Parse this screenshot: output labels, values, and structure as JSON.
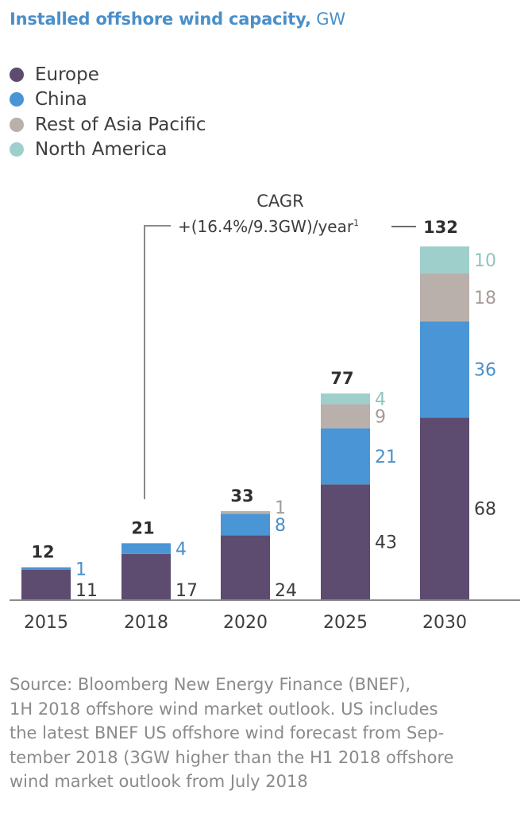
{
  "title": {
    "bold": "Installed offshore wind capacity,",
    "unit": "GW"
  },
  "legend": [
    {
      "label": "Europe",
      "color": "#5e4b70"
    },
    {
      "label": "China",
      "color": "#4a95d6"
    },
    {
      "label": "Rest of Asia Pacific",
      "color": "#b9b0ab"
    },
    {
      "label": "North America",
      "color": "#9ecfcb"
    }
  ],
  "annotation": {
    "line1": "CAGR",
    "line2": "+(16.4%/9.3GW)/year",
    "superscript": "1"
  },
  "source_lines": [
    "Source: Bloomberg New Energy Finance (BNEF),",
    "1H 2018 offshore wind market outlook. US includes",
    "the latest BNEF US offshore wind forecast from Sep-",
    "tember 2018 (3GW higher than the H1 2018 offshore",
    "wind market outlook from July 2018"
  ],
  "chart_data": {
    "type": "bar",
    "stacked": true,
    "title": "Installed offshore wind capacity, GW",
    "xlabel": "",
    "ylabel": "GW",
    "ylim": [
      0,
      132
    ],
    "grid": false,
    "legend_position": "top-left",
    "categories": [
      "2015",
      "2018",
      "2020",
      "2025",
      "2030"
    ],
    "totals": [
      12,
      21,
      33,
      77,
      132
    ],
    "series": [
      {
        "name": "Europe",
        "color": "#5e4b70",
        "label_color": "#3d3d3d",
        "values": [
          11,
          17,
          24,
          43,
          68
        ]
      },
      {
        "name": "China",
        "color": "#4a95d6",
        "label_color": "#4a8fc9",
        "values": [
          1,
          4,
          8,
          21,
          36
        ]
      },
      {
        "name": "Rest of Asia Pacific",
        "color": "#b9b0ab",
        "label_color": "#a59c97",
        "values": [
          0,
          0,
          1,
          9,
          18
        ]
      },
      {
        "name": "North America",
        "color": "#9ecfcb",
        "label_color": "#8fc4c0",
        "values": [
          0,
          0,
          0,
          4,
          10
        ]
      }
    ],
    "segment_labels": [
      [
        "11",
        "1",
        null,
        null
      ],
      [
        "17",
        "4",
        null,
        null
      ],
      [
        "24",
        "8",
        "1",
        null
      ],
      [
        "43",
        "21",
        "9",
        "4"
      ],
      [
        "68",
        "36",
        "18",
        "10"
      ]
    ],
    "annotation": "CAGR +(16.4%/9.3GW)/year (2018–2030)"
  }
}
